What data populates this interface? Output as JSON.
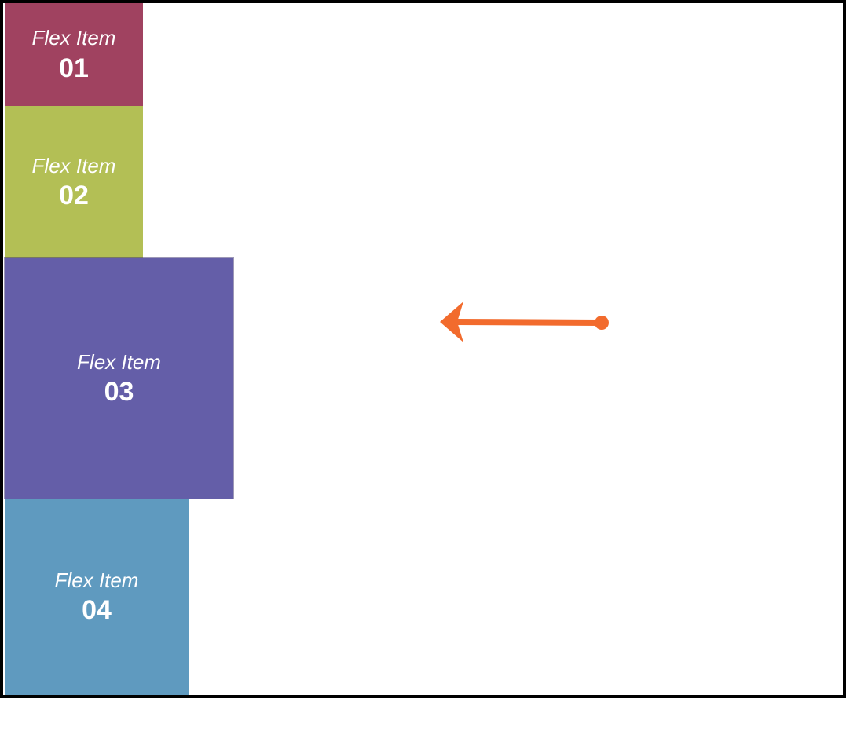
{
  "items": [
    {
      "label": "Flex Item",
      "number": "01",
      "color": "#a04260"
    },
    {
      "label": "Flex Item",
      "number": "02",
      "color": "#b3bf55"
    },
    {
      "label": "Flex Item",
      "number": "03",
      "color": "#645ea8"
    },
    {
      "label": "Flex Item",
      "number": "04",
      "color": "#5f9abf"
    }
  ],
  "arrow": {
    "color": "#f26b2d",
    "direction": "left"
  }
}
